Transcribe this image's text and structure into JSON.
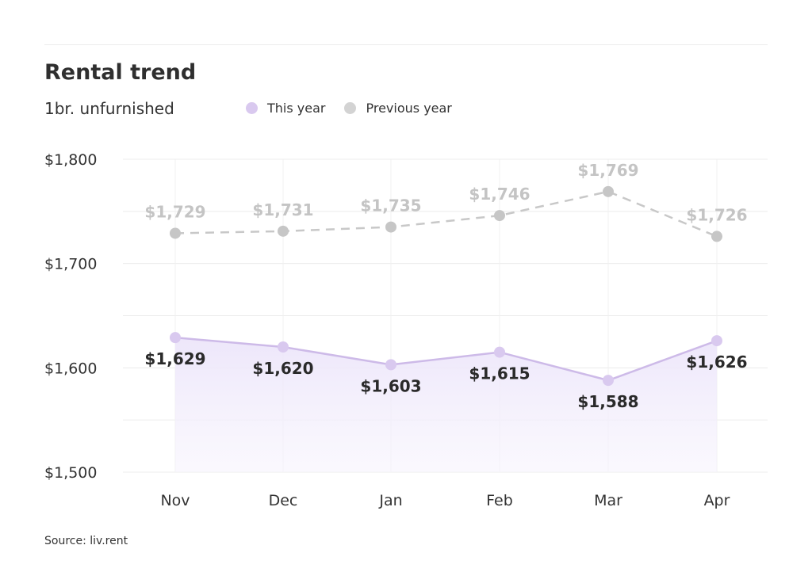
{
  "header": {
    "title": "Rental trend",
    "subtitle": "1br. unfurnished"
  },
  "footer": {
    "source": "Source: liv.rent"
  },
  "colors": {
    "this_year": "#d9c9ef",
    "this_year_line": "#cdbae8",
    "this_year_fill": "#f1ecfb",
    "previous_year": "#c8c8c8",
    "previous_year_label": "#c4c4c4",
    "grid": "#ececec"
  },
  "chart_data": {
    "type": "line",
    "title": "Rental trend",
    "subtitle": "1br. unfurnished",
    "xlabel": "",
    "ylabel": "",
    "categories": [
      "Nov",
      "Dec",
      "Jan",
      "Feb",
      "Mar",
      "Apr"
    ],
    "ylim": [
      1500,
      1800
    ],
    "yticks": [
      1500,
      1600,
      1700,
      1800
    ],
    "ytick_labels": [
      "$1,500",
      "$1,600",
      "$1,700",
      "$1,800"
    ],
    "grid": true,
    "legend": "top",
    "series": [
      {
        "name": "This year",
        "values": [
          1629,
          1620,
          1603,
          1615,
          1588,
          1626
        ],
        "labels": [
          "$1,629",
          "$1,620",
          "$1,603",
          "$1,615",
          "$1,588",
          "$1,626"
        ],
        "style": "solid, area-filled"
      },
      {
        "name": "Previous year",
        "values": [
          1729,
          1731,
          1735,
          1746,
          1769,
          1726
        ],
        "labels": [
          "$1,729",
          "$1,731",
          "$1,735",
          "$1,746",
          "$1,769",
          "$1,726"
        ],
        "style": "dashed"
      }
    ]
  }
}
